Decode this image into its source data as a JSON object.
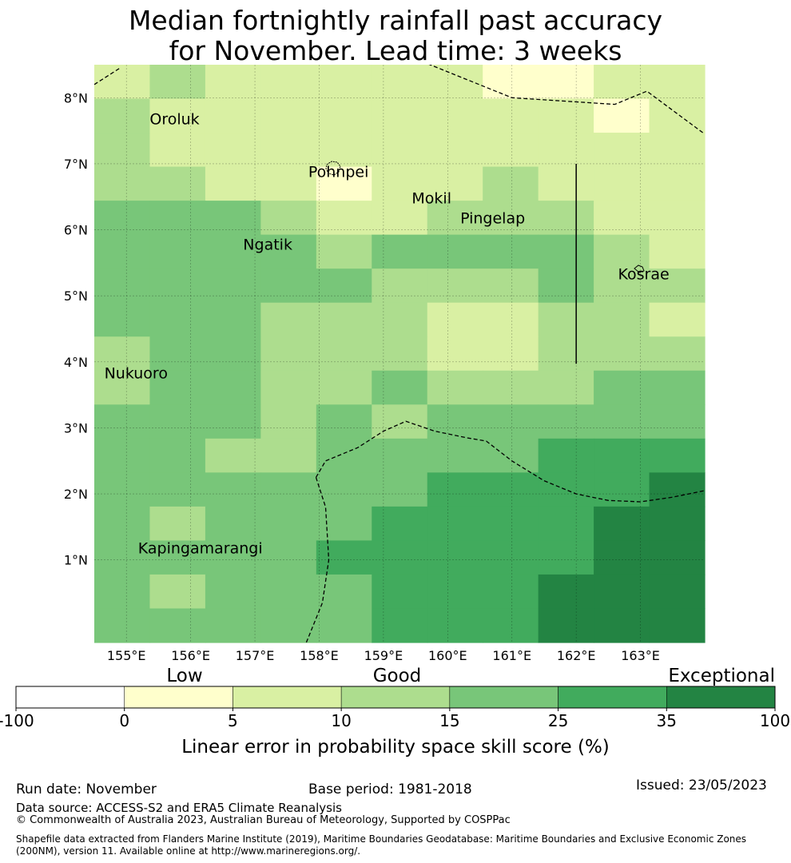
{
  "title": {
    "line1": "Median fortnightly rainfall past accuracy",
    "line2": "for November. Lead time: 3 weeks"
  },
  "map": {
    "lon_range": [
      154.5,
      164.0
    ],
    "lat_range": [
      -0.25,
      8.5
    ],
    "x_ticks": [
      "155°E",
      "156°E",
      "157°E",
      "158°E",
      "159°E",
      "160°E",
      "161°E",
      "162°E",
      "163°E"
    ],
    "y_ticks": [
      "8°N",
      "7°N",
      "6°N",
      "5°N",
      "4°N",
      "3°N",
      "2°N",
      "1°N"
    ],
    "grid": true,
    "cell_classes_rows_top_to_bottom": [
      [
        2,
        3,
        2,
        2,
        2,
        2,
        2,
        1,
        1,
        2,
        2
      ],
      [
        3,
        2,
        2,
        2,
        2,
        2,
        2,
        2,
        2,
        1,
        2
      ],
      [
        3,
        2,
        2,
        2,
        2,
        2,
        2,
        2,
        2,
        2,
        2
      ],
      [
        3,
        3,
        2,
        2,
        1,
        2,
        2,
        3,
        2,
        2,
        2
      ],
      [
        4,
        4,
        4,
        3,
        2,
        2,
        3,
        3,
        3,
        2,
        2
      ],
      [
        4,
        4,
        4,
        4,
        3,
        4,
        4,
        4,
        4,
        3,
        2
      ],
      [
        4,
        4,
        4,
        4,
        4,
        3,
        3,
        3,
        4,
        3,
        3
      ],
      [
        4,
        4,
        4,
        3,
        3,
        3,
        2,
        2,
        3,
        3,
        2
      ],
      [
        3,
        4,
        4,
        3,
        3,
        3,
        2,
        2,
        3,
        3,
        3
      ],
      [
        3,
        4,
        4,
        3,
        3,
        4,
        3,
        3,
        3,
        4,
        4
      ],
      [
        4,
        4,
        4,
        3,
        4,
        3,
        4,
        4,
        4,
        4,
        4
      ],
      [
        4,
        4,
        3,
        3,
        4,
        4,
        4,
        4,
        5,
        5,
        5
      ],
      [
        4,
        4,
        4,
        4,
        4,
        4,
        5,
        5,
        5,
        5,
        6
      ],
      [
        4,
        3,
        4,
        4,
        4,
        5,
        5,
        5,
        5,
        6,
        6
      ],
      [
        4,
        4,
        4,
        4,
        5,
        5,
        5,
        5,
        5,
        6,
        6
      ],
      [
        4,
        3,
        4,
        4,
        4,
        5,
        5,
        5,
        6,
        6,
        6
      ],
      [
        4,
        4,
        4,
        4,
        4,
        5,
        5,
        5,
        6,
        6,
        6
      ]
    ],
    "places": [
      {
        "name": "Oroluk",
        "lon": 155.75,
        "lat": 7.6
      },
      {
        "name": "Pohnpei",
        "lon": 158.3,
        "lat": 6.8
      },
      {
        "name": "Mokil",
        "lon": 159.75,
        "lat": 6.4
      },
      {
        "name": "Pingelap",
        "lon": 160.7,
        "lat": 6.1
      },
      {
        "name": "Ngatik",
        "lon": 157.2,
        "lat": 5.7
      },
      {
        "name": "Kosrae",
        "lon": 163.05,
        "lat": 5.25
      },
      {
        "name": "Nukuoro",
        "lon": 155.15,
        "lat": 3.75
      },
      {
        "name": "Kapingamarangi",
        "lon": 156.15,
        "lat": 1.1
      }
    ],
    "eez_boundaries": [
      [
        [
          159.6,
          8.55
        ],
        [
          161.0,
          8.0
        ],
        [
          162.6,
          7.9
        ],
        [
          163.1,
          8.1
        ],
        [
          164.0,
          7.45
        ]
      ],
      [
        [
          154.5,
          8.2
        ],
        [
          154.9,
          8.45
        ]
      ],
      [
        [
          157.95,
          2.25
        ],
        [
          158.1,
          2.5
        ],
        [
          158.6,
          2.7
        ],
        [
          159.0,
          2.95
        ],
        [
          159.35,
          3.1
        ],
        [
          159.8,
          2.95
        ],
        [
          160.3,
          2.85
        ],
        [
          160.6,
          2.8
        ],
        [
          161.0,
          2.5
        ],
        [
          161.5,
          2.2
        ],
        [
          162.0,
          2.0
        ],
        [
          162.5,
          1.9
        ],
        [
          163.0,
          1.88
        ],
        [
          163.5,
          1.95
        ],
        [
          164.0,
          2.05
        ]
      ],
      [
        [
          157.95,
          2.25
        ],
        [
          158.1,
          1.8
        ],
        [
          158.15,
          1.0
        ],
        [
          158.05,
          0.35
        ],
        [
          157.8,
          -0.25
        ]
      ]
    ],
    "solid_line": [
      [
        162.0,
        7.0
      ],
      [
        162.0,
        3.97
      ]
    ]
  },
  "colorbar": {
    "category_labels": [
      "Low",
      "Good",
      "Exceptional"
    ],
    "tick_labels": [
      "-100",
      "0",
      "5",
      "10",
      "15",
      "25",
      "35",
      "100"
    ],
    "colors": [
      "#ffffff",
      "#ffffcc",
      "#d9f0a3",
      "#addd8e",
      "#78c679",
      "#41ab5d",
      "#238443"
    ],
    "label": "Linear error in probability space skill score (%)"
  },
  "footer": {
    "run_date": "Run date: November",
    "base_period": "Base period: 1981-2018",
    "issued": "Issued: 23/05/2023",
    "data_source": "Data source: ACCESS-S2 and ERA5 Climate Reanalysis",
    "copyright": "© Commonwealth of Australia 2023, Australian Bureau of Meteorology, Supported by COSPPac",
    "shapefile_note": "Shapefile data extracted from Flanders Marine Institute (2019), Maritime Boundaries Geodatabase: Maritime Boundaries and Exclusive Economic Zones (200NM), version 11. Available online at http://www.marineregions.org/."
  }
}
